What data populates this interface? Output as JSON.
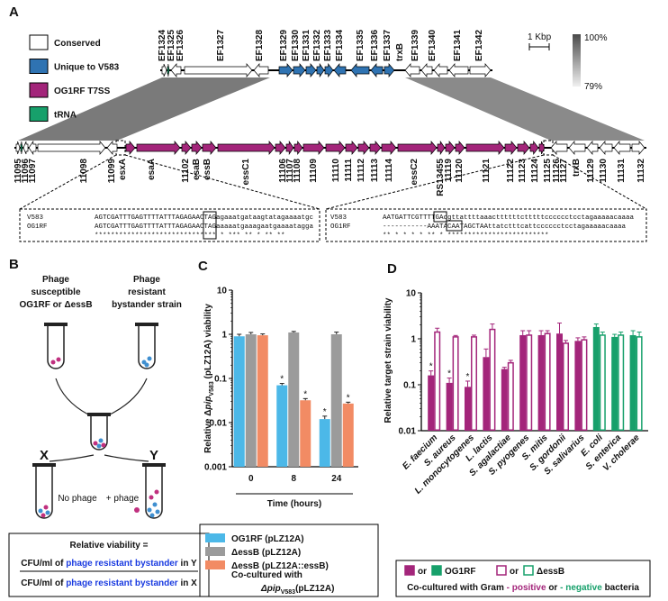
{
  "panel_a": {
    "label": "A",
    "legend": [
      "Conserved",
      "Unique to V583",
      "OG1RF T7SS",
      "tRNA"
    ],
    "scale_label": "1 Kbp",
    "identity_max": "100%",
    "identity_min": "79%",
    "top_genes": [
      "EF1324",
      "EF1325",
      "EF1326",
      "EF1327",
      "EF1328",
      "EF1329",
      "EF1330",
      "EF1331",
      "EF1332",
      "EF1333",
      "EF1334",
      "EF1335",
      "EF1336",
      "EF1337",
      "trxB",
      "EF1339",
      "EF1340",
      "EF1341",
      "EF1342"
    ],
    "bottom_genes": [
      "11095",
      "11096",
      "11097",
      "11098",
      "11099",
      "esxA",
      "esaA",
      "11102",
      "esaB",
      "essB",
      "essC1",
      "11106",
      "11107",
      "11108",
      "11109",
      "11110",
      "11111",
      "11112",
      "11113",
      "11114",
      "essC2",
      "RS13455",
      "11119",
      "11120",
      "11121",
      "11122",
      "11123",
      "11124",
      "11125",
      "11126",
      "11127",
      "trxB",
      "11129",
      "11130",
      "11131",
      "11132"
    ],
    "alignment_left": {
      "rows": [
        [
          "V583",
          "AGTCGATTTGAGTTTTATTTAGAGAACTAGagaaatgataagtatagaaaatgc"
        ],
        [
          "OG1RF",
          "AGTCGATTTGAGTTTTATTTAGAGAACTAGaaaaatgaaagaatgaaaatagga"
        ]
      ],
      "consensus": "******************************  * *** **  *   **  ** "
    },
    "alignment_right": {
      "rows": [
        [
          "V583",
          "AATGATTCGTTTTGAcgttattttaaacttttttctttttcccccctcctagaaaaacaaaa"
        ],
        [
          "OG1RF",
          "-----------AAATACAATAGCTAAttatctttcattcccccctcctagaaaaacaaaa"
        ]
      ],
      "consensus": "            ** *     *  *  *     ** *  *************************"
    }
  },
  "panel_b": {
    "label": "B",
    "left_title": [
      "Phage",
      "susceptible",
      "OG1RF or ΔessB"
    ],
    "right_title": [
      "Phage",
      "resistant",
      "bystander strain"
    ],
    "tube_x": "X",
    "tube_y": "Y",
    "no_phage": "No phage",
    "plus_phage": "+ phage",
    "formula_title": "Relative viability =",
    "numerator": [
      "CFU/ml of",
      "phage resistant bystander",
      "in Y"
    ],
    "denominator": [
      "CFU/ml of",
      "phage resistant bystander",
      "in X"
    ]
  },
  "chart_data": [
    {
      "type": "bar",
      "label": "C",
      "log_scale": true,
      "ylabel": [
        "Relative Δ",
        "pip",
        "V583",
        "(pLZ12A) viability"
      ],
      "xlabel": "Time (hours)",
      "categories": [
        "0",
        "8",
        "24"
      ],
      "ylim": [
        0.001,
        10
      ],
      "yticks": [
        0.001,
        0.01,
        0.1,
        1,
        10
      ],
      "series": [
        {
          "name": "OG1RF (pLZ12A)",
          "color": "#4cb8e8",
          "values": [
            0.9,
            0.07,
            0.012
          ],
          "errors": [
            0.1,
            0.007,
            0.002
          ],
          "annotations": [
            null,
            "*",
            "*"
          ]
        },
        {
          "name": "ΔessB (pLZ12A)",
          "color": "#9b9b9b",
          "values": [
            1.0,
            1.1,
            1.0
          ],
          "errors": [
            0.1,
            0.06,
            0.12
          ],
          "annotations": [
            null,
            null,
            null
          ]
        },
        {
          "name": "ΔessB (pLZ12A::essB)",
          "color": "#f28b64",
          "values": [
            0.95,
            0.032,
            0.027
          ],
          "errors": [
            0.07,
            0.003,
            0.002
          ],
          "annotations": [
            null,
            "*",
            "*"
          ]
        }
      ],
      "legend_note": [
        "Co-cultured with",
        "Δpip",
        "V583",
        "(pLZ12A)"
      ]
    },
    {
      "type": "bar",
      "label": "D",
      "log_scale": true,
      "ylabel": "Relative target strain viability",
      "categories": [
        "E. faecium",
        "S. aureus",
        "L. monocytogenes",
        "L. lactis",
        "S. agalactiae",
        "S. pyogenes",
        "S. mitis",
        "S. gordonii",
        "S. salivarius",
        "E. coli",
        "S. enterica",
        "V. cholerae"
      ],
      "ylim": [
        0.01,
        10
      ],
      "yticks": [
        0.01,
        0.1,
        1,
        10
      ],
      "series": [
        {
          "name": "OG1RF",
          "style": "filled",
          "colors": [
            "#a3257a",
            "#a3257a",
            "#a3257a",
            "#a3257a",
            "#a3257a",
            "#a3257a",
            "#a3257a",
            "#a3257a",
            "#a3257a",
            "#17a06b",
            "#17a06b",
            "#17a06b"
          ],
          "values": [
            0.16,
            0.11,
            0.09,
            0.4,
            0.22,
            1.2,
            1.2,
            1.3,
            0.9,
            1.8,
            1.1,
            1.2
          ],
          "errors": [
            0.04,
            0.03,
            0.03,
            0.2,
            0.02,
            0.3,
            0.3,
            0.9,
            0.15,
            0.3,
            0.15,
            0.3
          ],
          "annotations": [
            "*",
            "*",
            "*",
            null,
            null,
            null,
            null,
            null,
            null,
            null,
            null,
            null
          ]
        },
        {
          "name": "ΔessB",
          "style": "outline",
          "colors": [
            "#a3257a",
            "#a3257a",
            "#a3257a",
            "#a3257a",
            "#a3257a",
            "#a3257a",
            "#a3257a",
            "#a3257a",
            "#a3257a",
            "#17a06b",
            "#17a06b",
            "#17a06b"
          ],
          "values": [
            1.4,
            1.1,
            1.1,
            1.6,
            0.3,
            1.2,
            1.3,
            0.8,
            0.95,
            1.2,
            1.2,
            1.1
          ],
          "errors": [
            0.3,
            0.08,
            0.1,
            0.5,
            0.04,
            0.3,
            0.2,
            0.12,
            0.15,
            0.2,
            0.2,
            0.3
          ],
          "annotations": [
            null,
            null,
            null,
            null,
            null,
            null,
            null,
            null,
            null,
            null,
            null,
            null
          ]
        }
      ],
      "legend_or": "or",
      "legend_note": [
        "Co-cultured with Gram",
        "- positive",
        "or",
        "- negative",
        "bacteria"
      ]
    }
  ]
}
